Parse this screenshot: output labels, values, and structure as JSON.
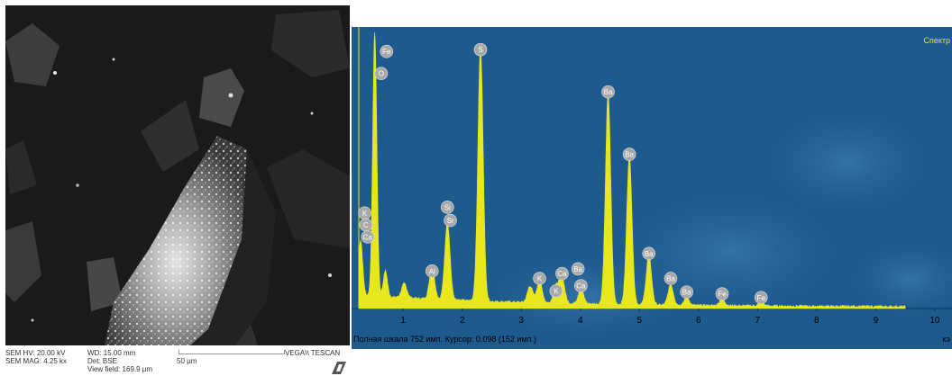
{
  "sem": {
    "hv": "SEM HV: 20.00 kV",
    "mag": "SEM MAG: 4.25 kx",
    "wd": "WD: 15.00 mm",
    "det": "Det: BSE",
    "view_field": "View field: 169.9 µm",
    "scale": "50 µm",
    "brand": "VEGA\\\\ TESCAN"
  },
  "spectrum": {
    "title": "Спектр",
    "status_text": "Полная шкала 752 имп. Курсор: 0.098  (152 имп.)",
    "axis_unit": "кэ",
    "colors": {
      "background": "#1d5a8e",
      "spectrum": "#e8e61c",
      "label_bubble": "#a8a8a8"
    }
  },
  "chart_data": {
    "type": "area",
    "title": "Спектр",
    "xlabel": "кэ",
    "ylabel": "",
    "xlim": [
      0.25,
      10.2
    ],
    "ylim": [
      0,
      752
    ],
    "x_ticks": [
      "1",
      "2",
      "3",
      "4",
      "5",
      "6",
      "7",
      "8",
      "9",
      "10"
    ],
    "peaks": [
      {
        "x": 0.28,
        "y": 150
      },
      {
        "x": 0.52,
        "y": 720
      },
      {
        "x": 0.7,
        "y": 70
      },
      {
        "x": 1.02,
        "y": 38
      },
      {
        "x": 1.49,
        "y": 85
      },
      {
        "x": 1.75,
        "y": 210
      },
      {
        "x": 2.31,
        "y": 690
      },
      {
        "x": 3.15,
        "y": 45
      },
      {
        "x": 3.31,
        "y": 60
      },
      {
        "x": 3.59,
        "y": 45
      },
      {
        "x": 3.69,
        "y": 70
      },
      {
        "x": 4.01,
        "y": 40
      },
      {
        "x": 4.47,
        "y": 575
      },
      {
        "x": 4.83,
        "y": 405
      },
      {
        "x": 5.16,
        "y": 135
      },
      {
        "x": 5.53,
        "y": 55
      },
      {
        "x": 5.8,
        "y": 20
      },
      {
        "x": 6.4,
        "y": 18
      },
      {
        "x": 7.06,
        "y": 8
      }
    ],
    "labels": [
      {
        "text": "Fe",
        "x": 0.72,
        "y": 700
      },
      {
        "text": "O",
        "x": 0.63,
        "y": 640
      },
      {
        "text": "S",
        "x": 2.31,
        "y": 705
      },
      {
        "text": "Ba",
        "x": 4.47,
        "y": 590
      },
      {
        "text": "Ba",
        "x": 4.83,
        "y": 420
      },
      {
        "text": "Ba",
        "x": 5.16,
        "y": 150
      },
      {
        "text": "Ba",
        "x": 5.53,
        "y": 82
      },
      {
        "text": "Ba",
        "x": 5.8,
        "y": 45
      },
      {
        "text": "Fe",
        "x": 6.4,
        "y": 40
      },
      {
        "text": "Fe",
        "x": 7.06,
        "y": 30
      },
      {
        "text": "K",
        "x": 0.35,
        "y": 260
      },
      {
        "text": "C",
        "x": 0.37,
        "y": 228
      },
      {
        "text": "Ca",
        "x": 0.4,
        "y": 195
      },
      {
        "text": "Al",
        "x": 1.49,
        "y": 102
      },
      {
        "text": "Si",
        "x": 1.75,
        "y": 276
      },
      {
        "text": "Sr",
        "x": 1.8,
        "y": 240
      },
      {
        "text": "K",
        "x": 3.31,
        "y": 82
      },
      {
        "text": "K",
        "x": 3.59,
        "y": 48
      },
      {
        "text": "Ca",
        "x": 3.69,
        "y": 95
      },
      {
        "text": "Ba",
        "x": 3.96,
        "y": 108
      },
      {
        "text": "Ca",
        "x": 4.01,
        "y": 62
      }
    ]
  }
}
